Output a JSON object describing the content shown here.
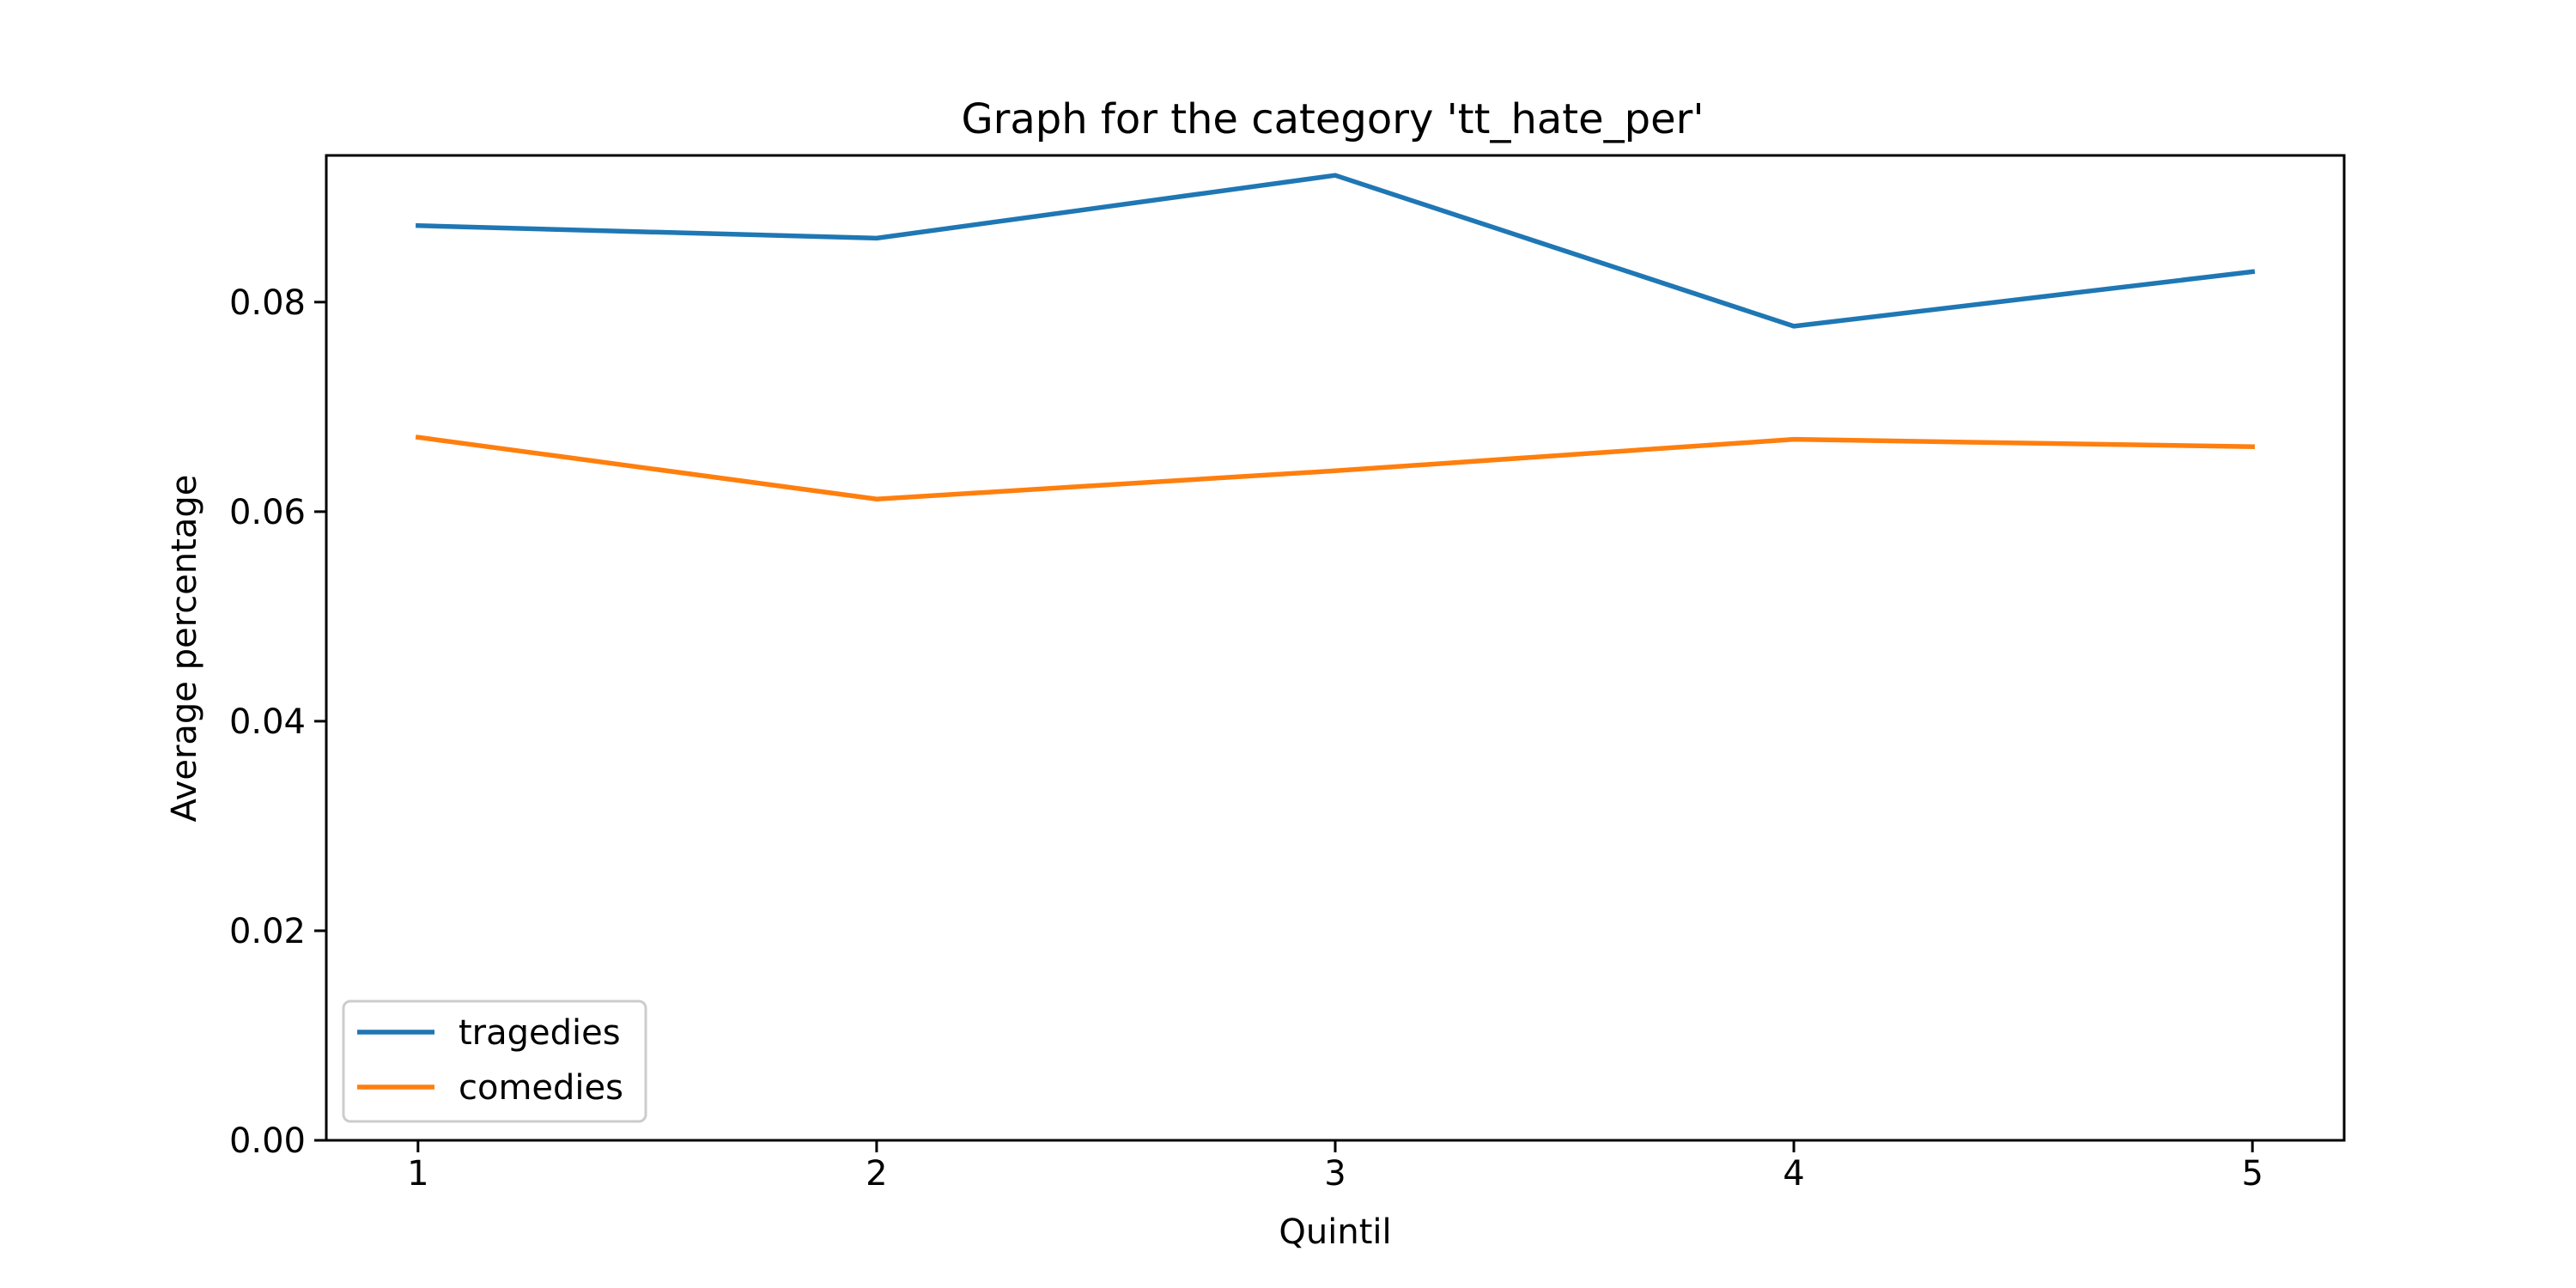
{
  "chart_data": {
    "type": "line",
    "title": "Graph for the category  'tt_hate_per'",
    "xlabel": "Quintil",
    "ylabel": "Average percentage",
    "x": [
      1,
      2,
      3,
      4,
      5
    ],
    "xticks": [
      "1",
      "2",
      "3",
      "4",
      "5"
    ],
    "yticks": [
      "0.00",
      "0.02",
      "0.04",
      "0.06",
      "0.08"
    ],
    "xlim": [
      0.8,
      5.2
    ],
    "ylim": [
      0.0,
      0.094
    ],
    "grid": false,
    "legend": "lower-left",
    "series": [
      {
        "name": "tragedies",
        "color": "#1f77b4",
        "values": [
          0.0873,
          0.0861,
          0.0921,
          0.0777,
          0.0829
        ]
      },
      {
        "name": "comedies",
        "color": "#ff7f0e",
        "values": [
          0.0671,
          0.0612,
          0.0639,
          0.0669,
          0.0662
        ]
      }
    ]
  }
}
